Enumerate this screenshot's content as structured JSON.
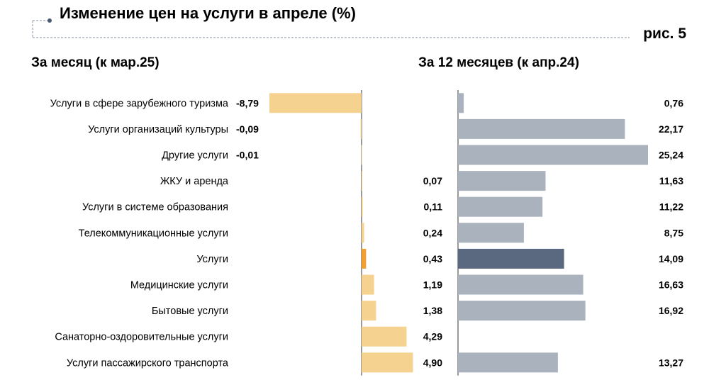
{
  "title": "Изменение цен на услуги в апреле (%)",
  "figure_label": "рис. 5",
  "colors": {
    "left_bar": "#f5d28f",
    "left_highlight": "#f0a030",
    "right_bar": "#aab3bd",
    "right_highlight": "#5a6880",
    "deco_line": "#9aa3b0",
    "deco_dot": "#4a5a70"
  },
  "chart_data": {
    "type": "bar",
    "orientation": "horizontal",
    "categories": [
      "Услуги в сфере зарубежного туризма",
      "Услуги организаций культуры",
      "Другие услуги",
      "ЖКУ и аренда",
      "Услуги в системе образования",
      "Телекоммуникационные услуги",
      "Услуги",
      "Медицинские услуги",
      "Бытовые услуги",
      "Санаторно-оздоровительные услуги",
      "Услуги пассажирского транспорта"
    ],
    "highlight_index": 6,
    "series": [
      {
        "name": "За месяц (к мар.25)",
        "values": [
          -8.79,
          -0.09,
          -0.01,
          0.07,
          0.11,
          0.24,
          0.43,
          1.19,
          1.38,
          4.29,
          4.9
        ],
        "labels": [
          "-8,79",
          "-0,09",
          "-0,01",
          "0,07",
          "0,11",
          "0,24",
          "0,43",
          "1,19",
          "1,38",
          "4,29",
          "4,90"
        ],
        "range": [
          -8.79,
          4.9
        ]
      },
      {
        "name": "За 12 месяцев (к апр.24)",
        "values": [
          0.76,
          22.17,
          25.24,
          11.63,
          11.22,
          8.75,
          14.09,
          16.63,
          16.92,
          null,
          13.27
        ],
        "labels": [
          "0,76",
          "22,17",
          "25,24",
          "11,63",
          "11,22",
          "8,75",
          "14,09",
          "16,63",
          "16,92",
          "",
          "13,27"
        ],
        "range": [
          0,
          25.24
        ]
      }
    ]
  }
}
